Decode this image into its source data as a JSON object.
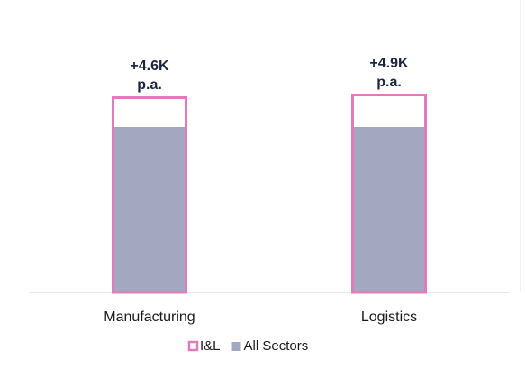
{
  "chart_data": {
    "type": "bar",
    "categories": [
      "Manufacturing",
      "Logistics"
    ],
    "series": [
      {
        "name": "I&L",
        "color": "#e07bbf",
        "values": [
          218,
          221
        ]
      },
      {
        "name": "All Sectors",
        "color": "#a3a7c0",
        "values": [
          184,
          184
        ]
      }
    ],
    "annotations": [
      [
        "+4.6K",
        "p.a."
      ],
      [
        "+4.9K",
        "p.a."
      ]
    ],
    "ylim": [
      0,
      250
    ],
    "legend": "bottom"
  }
}
